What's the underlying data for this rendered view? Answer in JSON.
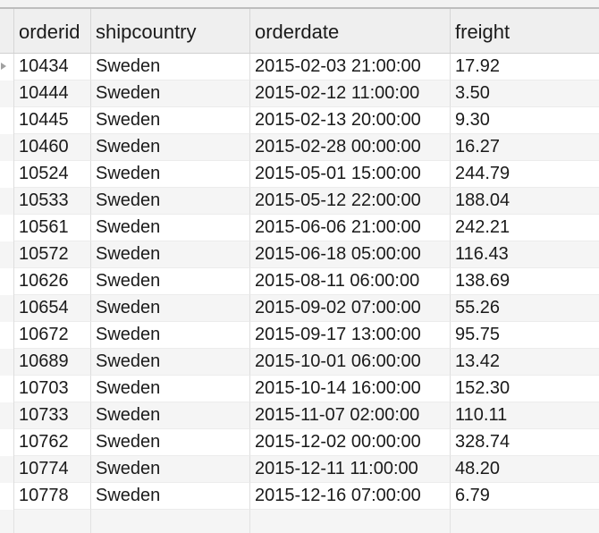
{
  "columns": [
    "orderid",
    "shipcountry",
    "orderdate",
    "freight"
  ],
  "rows": [
    [
      "10434",
      "Sweden",
      "2015-02-03 21:00:00",
      "17.92"
    ],
    [
      "10444",
      "Sweden",
      "2015-02-12 11:00:00",
      "3.50"
    ],
    [
      "10445",
      "Sweden",
      "2015-02-13 20:00:00",
      "9.30"
    ],
    [
      "10460",
      "Sweden",
      "2015-02-28 00:00:00",
      "16.27"
    ],
    [
      "10524",
      "Sweden",
      "2015-05-01 15:00:00",
      "244.79"
    ],
    [
      "10533",
      "Sweden",
      "2015-05-12 22:00:00",
      "188.04"
    ],
    [
      "10561",
      "Sweden",
      "2015-06-06 21:00:00",
      "242.21"
    ],
    [
      "10572",
      "Sweden",
      "2015-06-18 05:00:00",
      "116.43"
    ],
    [
      "10626",
      "Sweden",
      "2015-08-11 06:00:00",
      "138.69"
    ],
    [
      "10654",
      "Sweden",
      "2015-09-02 07:00:00",
      "55.26"
    ],
    [
      "10672",
      "Sweden",
      "2015-09-17 13:00:00",
      "95.75"
    ],
    [
      "10689",
      "Sweden",
      "2015-10-01 06:00:00",
      "13.42"
    ],
    [
      "10703",
      "Sweden",
      "2015-10-14 16:00:00",
      "152.30"
    ],
    [
      "10733",
      "Sweden",
      "2015-11-07 02:00:00",
      "110.11"
    ],
    [
      "10762",
      "Sweden",
      "2015-12-02 00:00:00",
      "328.74"
    ],
    [
      "10774",
      "Sweden",
      "2015-12-11 11:00:00",
      "48.20"
    ],
    [
      "10778",
      "Sweden",
      "2015-12-16 07:00:00",
      "6.79"
    ]
  ],
  "selected_row_index": 0,
  "icons": {
    "row_marker": "current-row-triangle-icon"
  }
}
